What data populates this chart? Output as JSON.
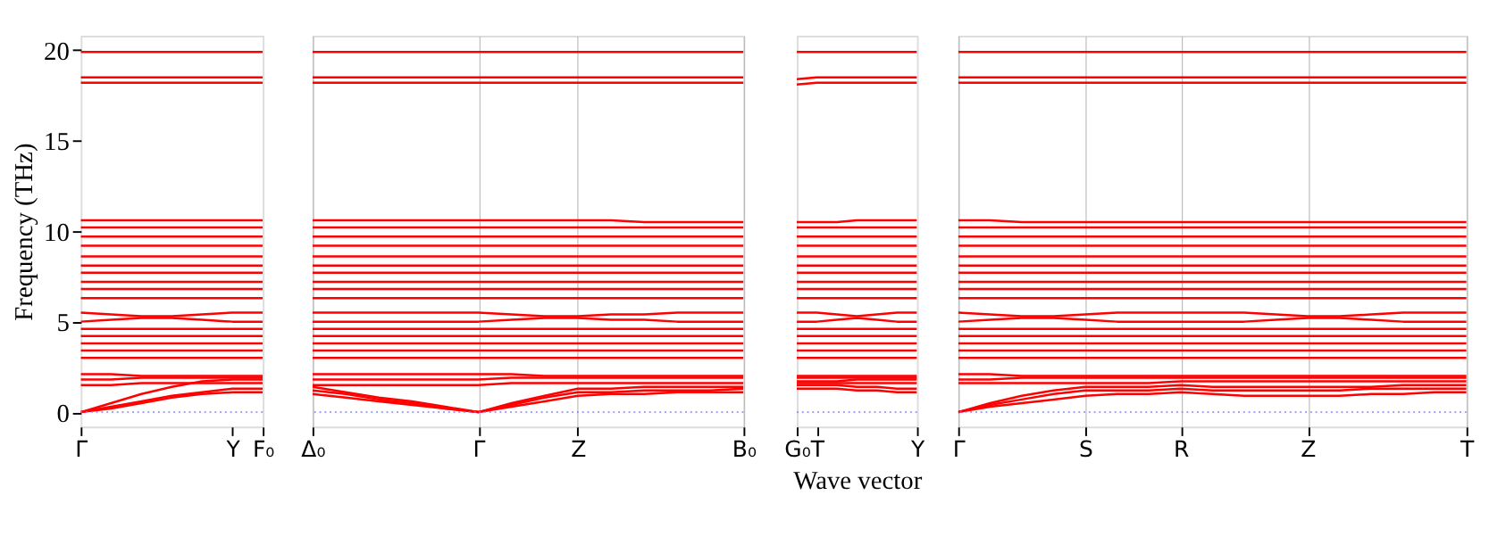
{
  "chart_data": [
    {
      "type": "line",
      "color": "#ff0000",
      "ylabel": "Frequency (THz)",
      "categories": [
        "Γ",
        null,
        null,
        null,
        null,
        "Y",
        "F₀"
      ],
      "ylim": [
        -0.8,
        20.8
      ],
      "yticks": [
        0,
        5,
        10,
        15,
        20
      ],
      "line_style": "solid",
      "ref_lines": [
        {
          "axis": "y",
          "value": 0,
          "label": null,
          "color": "#8080ff",
          "line_style": "dotted"
        }
      ],
      "series": [
        {
          "values": [
            0,
            0.2,
            0.5,
            0.8,
            1.0,
            1.1,
            1.1
          ]
        },
        {
          "values": [
            0,
            0.3,
            0.6,
            0.9,
            1.1,
            1.3,
            1.3
          ]
        },
        {
          "values": [
            0,
            0.5,
            1.0,
            1.4,
            1.7,
            1.8,
            1.8
          ]
        },
        {
          "values": [
            1.5,
            1.5,
            1.6,
            1.6,
            1.6,
            1.6,
            1.6
          ]
        },
        {
          "values": [
            1.8,
            1.8,
            1.9,
            1.9,
            1.9,
            1.9,
            1.9
          ]
        },
        {
          "values": [
            2.1,
            2.1,
            2.0,
            2.0,
            2.0,
            2.0,
            2.0
          ]
        },
        {
          "values": [
            3.0,
            3.0,
            3.0,
            3.0,
            3.0,
            3.0,
            3.0
          ]
        },
        {
          "values": [
            3.4,
            3.4,
            3.4,
            3.4,
            3.4,
            3.4,
            3.4
          ]
        },
        {
          "values": [
            3.8,
            3.8,
            3.8,
            3.8,
            3.8,
            3.8,
            3.8
          ]
        },
        {
          "values": [
            4.2,
            4.2,
            4.2,
            4.2,
            4.2,
            4.2,
            4.2
          ]
        },
        {
          "values": [
            4.6,
            4.6,
            4.6,
            4.6,
            4.6,
            4.6,
            4.6
          ]
        },
        {
          "values": [
            5.0,
            5.1,
            5.2,
            5.2,
            5.1,
            5.0,
            5.0
          ]
        },
        {
          "values": [
            5.5,
            5.4,
            5.3,
            5.3,
            5.4,
            5.5,
            5.5
          ]
        },
        {
          "values": [
            6.3,
            6.3,
            6.3,
            6.3,
            6.3,
            6.3,
            6.3
          ]
        },
        {
          "values": [
            6.8,
            6.8,
            6.8,
            6.8,
            6.8,
            6.8,
            6.8
          ]
        },
        {
          "values": [
            7.2,
            7.2,
            7.2,
            7.2,
            7.2,
            7.2,
            7.2
          ]
        },
        {
          "values": [
            7.7,
            7.7,
            7.7,
            7.7,
            7.7,
            7.7,
            7.7
          ]
        },
        {
          "values": [
            8.1,
            8.1,
            8.1,
            8.1,
            8.1,
            8.1,
            8.1
          ]
        },
        {
          "values": [
            8.6,
            8.6,
            8.6,
            8.6,
            8.6,
            8.6,
            8.6
          ]
        },
        {
          "values": [
            9.2,
            9.2,
            9.2,
            9.2,
            9.2,
            9.2,
            9.2
          ]
        },
        {
          "values": [
            9.7,
            9.7,
            9.7,
            9.7,
            9.7,
            9.7,
            9.7
          ]
        },
        {
          "values": [
            10.2,
            10.2,
            10.2,
            10.2,
            10.2,
            10.2,
            10.2
          ]
        },
        {
          "values": [
            10.6,
            10.6,
            10.6,
            10.6,
            10.6,
            10.6,
            10.6
          ]
        },
        {
          "values": [
            18.2,
            18.2,
            18.2,
            18.2,
            18.2,
            18.2,
            18.2
          ]
        },
        {
          "values": [
            18.5,
            18.5,
            18.5,
            18.5,
            18.5,
            18.5,
            18.5
          ]
        },
        {
          "values": [
            19.9,
            19.9,
            19.9,
            19.9,
            19.9,
            19.9,
            19.9
          ]
        }
      ]
    },
    {
      "type": "line",
      "color": "#ff0000",
      "categories": [
        "Δ₀",
        null,
        null,
        null,
        null,
        "Γ",
        null,
        null,
        "Z",
        null,
        null,
        null,
        null,
        "B₀"
      ],
      "ylim": [
        -0.8,
        20.8
      ],
      "yticks": [
        0,
        5,
        10,
        15,
        20
      ],
      "tick_labels": "x",
      "grid": "x",
      "line_style": "solid",
      "ref_lines": [
        {
          "axis": "y",
          "value": 0,
          "label": null,
          "color": "#8080ff",
          "line_style": "dotted"
        }
      ],
      "series": [
        {
          "values": [
            1.0,
            0.8,
            0.6,
            0.4,
            0.2,
            0,
            0.3,
            0.6,
            0.9,
            1.0,
            1.0,
            1.1,
            1.1,
            1.1
          ]
        },
        {
          "values": [
            1.2,
            1.0,
            0.7,
            0.5,
            0.2,
            0,
            0.4,
            0.8,
            1.1,
            1.1,
            1.2,
            1.2,
            1.2,
            1.3
          ]
        },
        {
          "values": [
            1.4,
            1.1,
            0.8,
            0.6,
            0.3,
            0,
            0.5,
            0.9,
            1.3,
            1.3,
            1.4,
            1.4,
            1.4,
            1.4
          ]
        },
        {
          "values": [
            1.5,
            1.5,
            1.5,
            1.5,
            1.5,
            1.5,
            1.6,
            1.6,
            1.6,
            1.6,
            1.6,
            1.6,
            1.6,
            1.6
          ]
        },
        {
          "values": [
            1.8,
            1.8,
            1.8,
            1.8,
            1.8,
            1.8,
            1.9,
            1.9,
            1.9,
            1.9,
            1.9,
            1.9,
            1.9,
            1.9
          ]
        },
        {
          "values": [
            2.1,
            2.1,
            2.1,
            2.1,
            2.1,
            2.1,
            2.1,
            2.0,
            2.0,
            2.0,
            2.0,
            2.0,
            2.0,
            2.0
          ]
        },
        {
          "values": [
            3.0,
            3.0,
            3.0,
            3.0,
            3.0,
            3.0,
            3.0,
            3.0,
            3.0,
            3.0,
            3.0,
            3.0,
            3.0,
            3.0
          ]
        },
        {
          "values": [
            3.4,
            3.4,
            3.4,
            3.4,
            3.4,
            3.4,
            3.4,
            3.4,
            3.4,
            3.4,
            3.4,
            3.4,
            3.4,
            3.4
          ]
        },
        {
          "values": [
            3.8,
            3.8,
            3.8,
            3.8,
            3.8,
            3.8,
            3.8,
            3.8,
            3.8,
            3.8,
            3.8,
            3.8,
            3.8,
            3.8
          ]
        },
        {
          "values": [
            4.2,
            4.2,
            4.2,
            4.2,
            4.2,
            4.2,
            4.2,
            4.2,
            4.2,
            4.2,
            4.2,
            4.2,
            4.2,
            4.2
          ]
        },
        {
          "values": [
            4.6,
            4.6,
            4.6,
            4.6,
            4.6,
            4.6,
            4.6,
            4.6,
            4.6,
            4.6,
            4.6,
            4.6,
            4.6,
            4.6
          ]
        },
        {
          "values": [
            5.0,
            5.0,
            5.0,
            5.0,
            5.0,
            5.0,
            5.1,
            5.2,
            5.2,
            5.1,
            5.1,
            5.0,
            5.0,
            5.0
          ]
        },
        {
          "values": [
            5.5,
            5.5,
            5.5,
            5.5,
            5.5,
            5.5,
            5.4,
            5.3,
            5.3,
            5.4,
            5.4,
            5.5,
            5.5,
            5.5
          ]
        },
        {
          "values": [
            6.3,
            6.3,
            6.3,
            6.3,
            6.3,
            6.3,
            6.3,
            6.3,
            6.3,
            6.3,
            6.3,
            6.3,
            6.3,
            6.3
          ]
        },
        {
          "values": [
            6.8,
            6.8,
            6.8,
            6.8,
            6.8,
            6.8,
            6.8,
            6.8,
            6.8,
            6.8,
            6.8,
            6.8,
            6.8,
            6.8
          ]
        },
        {
          "values": [
            7.2,
            7.2,
            7.2,
            7.2,
            7.2,
            7.2,
            7.2,
            7.2,
            7.2,
            7.2,
            7.2,
            7.2,
            7.2,
            7.2
          ]
        },
        {
          "values": [
            7.7,
            7.7,
            7.7,
            7.7,
            7.7,
            7.7,
            7.7,
            7.7,
            7.7,
            7.7,
            7.7,
            7.7,
            7.7,
            7.7
          ]
        },
        {
          "values": [
            8.1,
            8.1,
            8.1,
            8.1,
            8.1,
            8.1,
            8.1,
            8.1,
            8.1,
            8.1,
            8.1,
            8.1,
            8.1,
            8.1
          ]
        },
        {
          "values": [
            8.6,
            8.6,
            8.6,
            8.6,
            8.6,
            8.6,
            8.6,
            8.6,
            8.6,
            8.6,
            8.6,
            8.6,
            8.6,
            8.6
          ]
        },
        {
          "values": [
            9.2,
            9.2,
            9.2,
            9.2,
            9.2,
            9.2,
            9.2,
            9.2,
            9.2,
            9.2,
            9.2,
            9.2,
            9.2,
            9.2
          ]
        },
        {
          "values": [
            9.7,
            9.7,
            9.7,
            9.7,
            9.7,
            9.7,
            9.7,
            9.7,
            9.7,
            9.7,
            9.7,
            9.7,
            9.7,
            9.7
          ]
        },
        {
          "values": [
            10.2,
            10.2,
            10.2,
            10.2,
            10.2,
            10.2,
            10.2,
            10.2,
            10.2,
            10.2,
            10.2,
            10.2,
            10.2,
            10.2
          ]
        },
        {
          "values": [
            10.6,
            10.6,
            10.6,
            10.6,
            10.6,
            10.6,
            10.6,
            10.6,
            10.6,
            10.6,
            10.5,
            10.5,
            10.5,
            10.5
          ]
        },
        {
          "values": [
            18.2,
            18.2,
            18.2,
            18.2,
            18.2,
            18.2,
            18.2,
            18.2,
            18.2,
            18.2,
            18.2,
            18.2,
            18.2,
            18.2
          ]
        },
        {
          "values": [
            18.5,
            18.5,
            18.5,
            18.5,
            18.5,
            18.5,
            18.5,
            18.5,
            18.5,
            18.5,
            18.5,
            18.5,
            18.5,
            18.5
          ]
        },
        {
          "values": [
            19.9,
            19.9,
            19.9,
            19.9,
            19.9,
            19.9,
            19.9,
            19.9,
            19.9,
            19.9,
            19.9,
            19.9,
            19.9,
            19.9
          ]
        }
      ]
    },
    {
      "type": "line",
      "color": "#ff0000",
      "xlabel": "Wave vector",
      "categories": [
        "G₀",
        "T",
        null,
        null,
        null,
        null,
        "Y"
      ],
      "ylim": [
        -0.8,
        20.8
      ],
      "yticks": [
        0,
        5,
        10,
        15,
        20
      ],
      "tick_labels": "x",
      "line_style": "solid",
      "ref_lines": [
        {
          "axis": "y",
          "value": 0,
          "label": null,
          "color": "#8080ff",
          "line_style": "dotted"
        }
      ],
      "series": [
        {
          "values": [
            1.3,
            1.3,
            1.3,
            1.2,
            1.2,
            1.1,
            1.1
          ]
        },
        {
          "values": [
            1.5,
            1.5,
            1.5,
            1.4,
            1.4,
            1.3,
            1.3
          ]
        },
        {
          "values": [
            1.7,
            1.7,
            1.7,
            1.8,
            1.8,
            1.8,
            1.8
          ]
        },
        {
          "values": [
            1.6,
            1.6,
            1.6,
            1.6,
            1.6,
            1.6,
            1.6
          ]
        },
        {
          "values": [
            1.9,
            1.9,
            1.9,
            1.9,
            1.9,
            1.9,
            1.9
          ]
        },
        {
          "values": [
            2.0,
            2.0,
            2.0,
            2.0,
            2.0,
            2.0,
            2.0
          ]
        },
        {
          "values": [
            3.0,
            3.0,
            3.0,
            3.0,
            3.0,
            3.0,
            3.0
          ]
        },
        {
          "values": [
            3.4,
            3.4,
            3.4,
            3.4,
            3.4,
            3.4,
            3.4
          ]
        },
        {
          "values": [
            3.8,
            3.8,
            3.8,
            3.8,
            3.8,
            3.8,
            3.8
          ]
        },
        {
          "values": [
            4.2,
            4.2,
            4.2,
            4.2,
            4.2,
            4.2,
            4.2
          ]
        },
        {
          "values": [
            4.6,
            4.6,
            4.6,
            4.6,
            4.6,
            4.6,
            4.6
          ]
        },
        {
          "values": [
            5.0,
            5.0,
            5.1,
            5.2,
            5.1,
            5.0,
            5.0
          ]
        },
        {
          "values": [
            5.5,
            5.5,
            5.4,
            5.3,
            5.4,
            5.5,
            5.5
          ]
        },
        {
          "values": [
            6.3,
            6.3,
            6.3,
            6.3,
            6.3,
            6.3,
            6.3
          ]
        },
        {
          "values": [
            6.8,
            6.8,
            6.8,
            6.8,
            6.8,
            6.8,
            6.8
          ]
        },
        {
          "values": [
            7.2,
            7.2,
            7.2,
            7.2,
            7.2,
            7.2,
            7.2
          ]
        },
        {
          "values": [
            7.7,
            7.7,
            7.7,
            7.7,
            7.7,
            7.7,
            7.7
          ]
        },
        {
          "values": [
            8.1,
            8.1,
            8.1,
            8.1,
            8.1,
            8.1,
            8.1
          ]
        },
        {
          "values": [
            8.6,
            8.6,
            8.6,
            8.6,
            8.6,
            8.6,
            8.6
          ]
        },
        {
          "values": [
            9.2,
            9.2,
            9.2,
            9.2,
            9.2,
            9.2,
            9.2
          ]
        },
        {
          "values": [
            9.7,
            9.7,
            9.7,
            9.7,
            9.7,
            9.7,
            9.7
          ]
        },
        {
          "values": [
            10.2,
            10.2,
            10.2,
            10.2,
            10.2,
            10.2,
            10.2
          ]
        },
        {
          "values": [
            10.5,
            10.5,
            10.5,
            10.6,
            10.6,
            10.6,
            10.6
          ]
        },
        {
          "values": [
            18.1,
            18.2,
            18.2,
            18.2,
            18.2,
            18.2,
            18.2
          ]
        },
        {
          "values": [
            18.4,
            18.5,
            18.5,
            18.5,
            18.5,
            18.5,
            18.5
          ]
        },
        {
          "values": [
            19.9,
            19.9,
            19.9,
            19.9,
            19.9,
            19.9,
            19.9
          ]
        }
      ]
    },
    {
      "type": "line",
      "color": "#ff0000",
      "categories": [
        "Γ",
        null,
        null,
        null,
        "S",
        null,
        null,
        "R",
        null,
        null,
        null,
        "Z",
        null,
        null,
        null,
        null,
        "T"
      ],
      "ylim": [
        -0.8,
        20.8
      ],
      "yticks": [
        0,
        5,
        10,
        15,
        20
      ],
      "tick_labels": "x",
      "grid": "x",
      "line_style": "solid",
      "ref_lines": [
        {
          "axis": "y",
          "value": 0,
          "label": null,
          "color": "#8080ff",
          "line_style": "dotted"
        }
      ],
      "series": [
        {
          "values": [
            0,
            0.3,
            0.5,
            0.7,
            0.9,
            1.0,
            1.0,
            1.1,
            1.0,
            0.9,
            0.9,
            0.9,
            0.9,
            1.0,
            1.0,
            1.1,
            1.1
          ]
        },
        {
          "values": [
            0,
            0.4,
            0.7,
            1.0,
            1.2,
            1.2,
            1.2,
            1.3,
            1.2,
            1.2,
            1.2,
            1.2,
            1.2,
            1.3,
            1.3,
            1.3,
            1.3
          ]
        },
        {
          "values": [
            0,
            0.5,
            0.9,
            1.2,
            1.4,
            1.4,
            1.4,
            1.5,
            1.4,
            1.4,
            1.4,
            1.4,
            1.4,
            1.4,
            1.5,
            1.5,
            1.5
          ]
        },
        {
          "values": [
            1.6,
            1.6,
            1.6,
            1.6,
            1.6,
            1.6,
            1.6,
            1.7,
            1.7,
            1.7,
            1.7,
            1.7,
            1.7,
            1.7,
            1.7,
            1.7,
            1.7
          ]
        },
        {
          "values": [
            1.8,
            1.8,
            1.9,
            1.9,
            1.9,
            1.9,
            1.9,
            1.9,
            1.9,
            1.9,
            1.9,
            1.9,
            1.9,
            1.9,
            1.9,
            1.9,
            1.9
          ]
        },
        {
          "values": [
            2.1,
            2.1,
            2.0,
            2.0,
            2.0,
            2.0,
            2.0,
            2.0,
            2.0,
            2.0,
            2.0,
            2.0,
            2.0,
            2.0,
            2.0,
            2.0,
            2.0
          ]
        },
        {
          "values": [
            3.0,
            3.0,
            3.0,
            3.0,
            3.0,
            3.0,
            3.0,
            3.0,
            3.0,
            3.0,
            3.0,
            3.0,
            3.0,
            3.0,
            3.0,
            3.0,
            3.0
          ]
        },
        {
          "values": [
            3.4,
            3.4,
            3.4,
            3.4,
            3.4,
            3.4,
            3.4,
            3.4,
            3.4,
            3.4,
            3.4,
            3.4,
            3.4,
            3.4,
            3.4,
            3.4,
            3.4
          ]
        },
        {
          "values": [
            3.8,
            3.8,
            3.8,
            3.8,
            3.8,
            3.8,
            3.8,
            3.8,
            3.8,
            3.8,
            3.8,
            3.8,
            3.8,
            3.8,
            3.8,
            3.8,
            3.8
          ]
        },
        {
          "values": [
            4.2,
            4.2,
            4.2,
            4.2,
            4.2,
            4.2,
            4.2,
            4.2,
            4.2,
            4.2,
            4.2,
            4.2,
            4.2,
            4.2,
            4.2,
            4.2,
            4.2
          ]
        },
        {
          "values": [
            4.6,
            4.6,
            4.6,
            4.6,
            4.6,
            4.6,
            4.6,
            4.6,
            4.6,
            4.6,
            4.6,
            4.6,
            4.6,
            4.6,
            4.6,
            4.6,
            4.6
          ]
        },
        {
          "values": [
            5.0,
            5.1,
            5.2,
            5.2,
            5.1,
            5.0,
            5.0,
            5.0,
            5.0,
            5.0,
            5.1,
            5.2,
            5.2,
            5.1,
            5.0,
            5.0,
            5.0
          ]
        },
        {
          "values": [
            5.5,
            5.4,
            5.3,
            5.3,
            5.4,
            5.5,
            5.5,
            5.5,
            5.5,
            5.5,
            5.4,
            5.3,
            5.3,
            5.4,
            5.5,
            5.5,
            5.5
          ]
        },
        {
          "values": [
            6.3,
            6.3,
            6.3,
            6.3,
            6.3,
            6.3,
            6.3,
            6.3,
            6.3,
            6.3,
            6.3,
            6.3,
            6.3,
            6.3,
            6.3,
            6.3,
            6.3
          ]
        },
        {
          "values": [
            6.8,
            6.8,
            6.8,
            6.8,
            6.8,
            6.8,
            6.8,
            6.8,
            6.8,
            6.8,
            6.8,
            6.8,
            6.8,
            6.8,
            6.8,
            6.8,
            6.8
          ]
        },
        {
          "values": [
            7.2,
            7.2,
            7.2,
            7.2,
            7.2,
            7.2,
            7.2,
            7.2,
            7.2,
            7.2,
            7.2,
            7.2,
            7.2,
            7.2,
            7.2,
            7.2,
            7.2
          ]
        },
        {
          "values": [
            7.7,
            7.7,
            7.7,
            7.7,
            7.7,
            7.7,
            7.7,
            7.7,
            7.7,
            7.7,
            7.7,
            7.7,
            7.7,
            7.7,
            7.7,
            7.7,
            7.7
          ]
        },
        {
          "values": [
            8.1,
            8.1,
            8.1,
            8.1,
            8.1,
            8.1,
            8.1,
            8.1,
            8.1,
            8.1,
            8.1,
            8.1,
            8.1,
            8.1,
            8.1,
            8.1,
            8.1
          ]
        },
        {
          "values": [
            8.6,
            8.6,
            8.6,
            8.6,
            8.6,
            8.6,
            8.6,
            8.6,
            8.6,
            8.6,
            8.6,
            8.6,
            8.6,
            8.6,
            8.6,
            8.6,
            8.6
          ]
        },
        {
          "values": [
            9.2,
            9.2,
            9.2,
            9.2,
            9.2,
            9.2,
            9.2,
            9.2,
            9.2,
            9.2,
            9.2,
            9.2,
            9.2,
            9.2,
            9.2,
            9.2,
            9.2
          ]
        },
        {
          "values": [
            9.7,
            9.7,
            9.7,
            9.7,
            9.7,
            9.7,
            9.7,
            9.7,
            9.7,
            9.7,
            9.7,
            9.7,
            9.7,
            9.7,
            9.7,
            9.7,
            9.7
          ]
        },
        {
          "values": [
            10.2,
            10.2,
            10.2,
            10.2,
            10.2,
            10.2,
            10.2,
            10.2,
            10.2,
            10.2,
            10.2,
            10.2,
            10.2,
            10.2,
            10.2,
            10.2,
            10.2
          ]
        },
        {
          "values": [
            10.6,
            10.6,
            10.5,
            10.5,
            10.5,
            10.5,
            10.5,
            10.5,
            10.5,
            10.5,
            10.5,
            10.5,
            10.5,
            10.5,
            10.5,
            10.5,
            10.5
          ]
        },
        {
          "values": [
            18.2,
            18.2,
            18.2,
            18.2,
            18.2,
            18.2,
            18.2,
            18.2,
            18.2,
            18.2,
            18.2,
            18.2,
            18.2,
            18.2,
            18.2,
            18.2,
            18.2
          ]
        },
        {
          "values": [
            18.5,
            18.5,
            18.5,
            18.5,
            18.5,
            18.5,
            18.5,
            18.5,
            18.5,
            18.5,
            18.5,
            18.5,
            18.5,
            18.5,
            18.5,
            18.5,
            18.5
          ]
        },
        {
          "values": [
            19.9,
            19.9,
            19.9,
            19.9,
            19.9,
            19.9,
            19.9,
            19.9,
            19.9,
            19.9,
            19.9,
            19.9,
            19.9,
            19.9,
            19.9,
            19.9,
            19.9
          ]
        }
      ]
    }
  ]
}
